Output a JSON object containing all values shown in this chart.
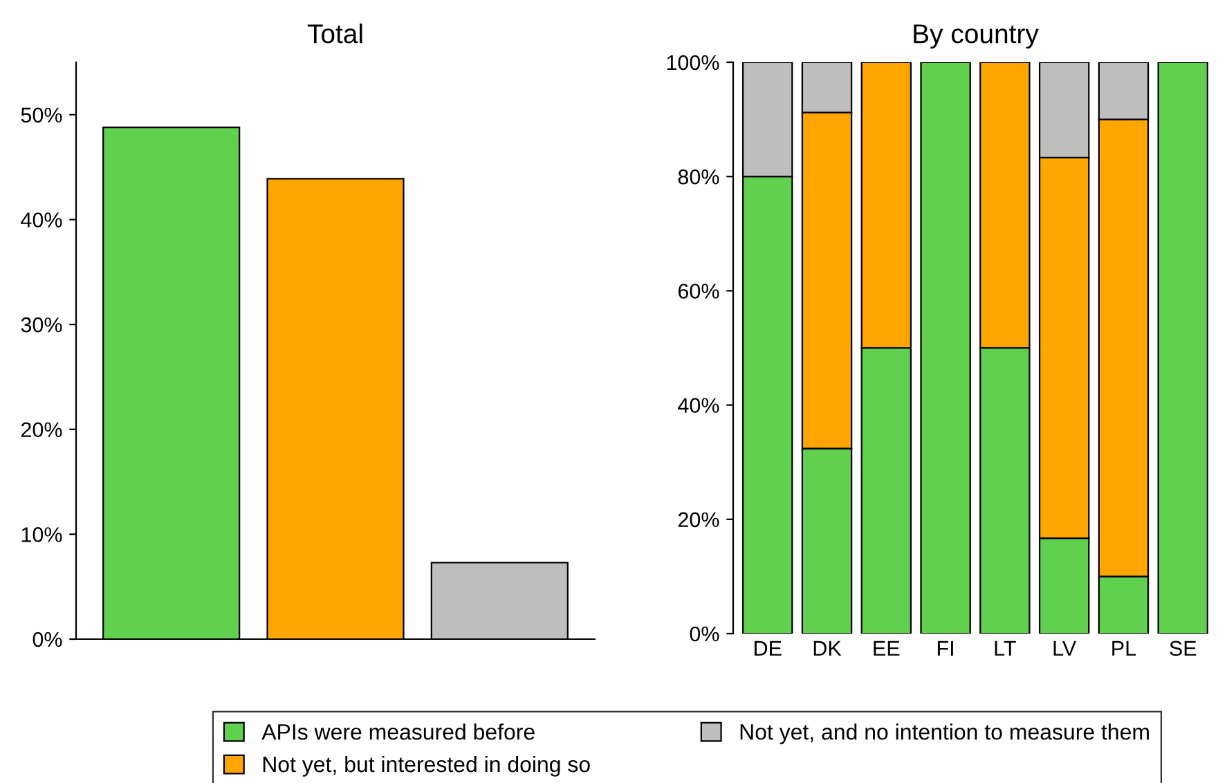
{
  "chart_data": [
    {
      "type": "bar",
      "title": "Total",
      "categories": [
        null,
        null,
        null
      ],
      "values": [
        48.8,
        43.9,
        7.3
      ],
      "colors": [
        "#61d04f",
        "#ffa500",
        "#bebebe"
      ],
      "ylim": [
        0,
        55
      ],
      "yticks": [
        {
          "value": 0,
          "label": "0%"
        },
        {
          "value": 10,
          "label": "10%"
        },
        {
          "value": 20,
          "label": "20%"
        },
        {
          "value": 30,
          "label": "30%"
        },
        {
          "value": 40,
          "label": "40%"
        },
        {
          "value": 50,
          "label": "50%"
        }
      ],
      "grid": false
    },
    {
      "type": "bar",
      "title": "By country",
      "stacked": true,
      "categories": [
        "DE",
        "DK",
        "EE",
        "FI",
        "LT",
        "LV",
        "PL",
        "SE"
      ],
      "series": [
        {
          "name": "APIs were measured before",
          "color": "#61d04f",
          "values": [
            80,
            32.4,
            50,
            100,
            50,
            16.7,
            10,
            100
          ]
        },
        {
          "name": "Not yet, but interested in doing so",
          "color": "#ffa500",
          "values": [
            null,
            58.8,
            50,
            null,
            50,
            66.6,
            80,
            null
          ]
        },
        {
          "name": "Not yet, and no intention to measure them",
          "color": "#bebebe",
          "values": [
            20,
            8.8,
            null,
            null,
            null,
            16.7,
            10,
            null
          ]
        }
      ],
      "ylim": [
        0,
        100
      ],
      "yticks": [
        {
          "value": 0,
          "label": "0%"
        },
        {
          "value": 20,
          "label": "20%"
        },
        {
          "value": 40,
          "label": "40%"
        },
        {
          "value": 60,
          "label": "60%"
        },
        {
          "value": 80,
          "label": "80%"
        },
        {
          "value": 100,
          "label": "100%"
        }
      ],
      "grid": false,
      "legend": "bottom"
    }
  ]
}
